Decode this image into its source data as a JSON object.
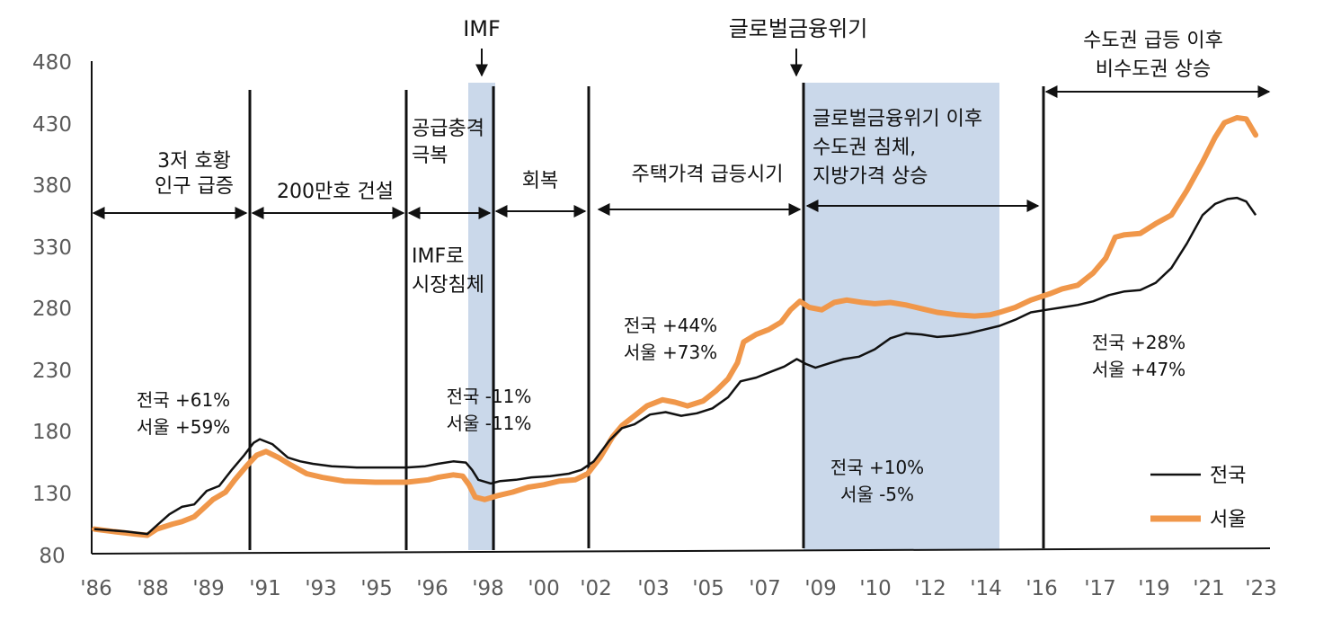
{
  "colors": {
    "nationwide": "#111111",
    "seoul": "#f0974a",
    "shade": "#cad8ea",
    "axis": "#111111"
  },
  "chart_data": {
    "type": "line",
    "title": "",
    "xlabel": "",
    "ylabel": "",
    "ylim": [
      80,
      480
    ],
    "yticks": [
      80,
      130,
      180,
      230,
      280,
      330,
      380,
      430,
      480
    ],
    "x_tick_labels": [
      "'86",
      "'88",
      "'89",
      "'91",
      "'93",
      "'95",
      "'96",
      "'98",
      "'00",
      "'02",
      "'03",
      "'05",
      "'07",
      "'09",
      "'10",
      "'12",
      "'14",
      "'16",
      "'17",
      "'19",
      "'21",
      "'23"
    ],
    "x_range": [
      1986.0,
      2023.4
    ],
    "shaded_periods": [
      {
        "name": "imf",
        "start": 1997.9,
        "end": 1998.6
      },
      {
        "name": "gfc",
        "start": 2008.8,
        "end": 2014.9
      }
    ],
    "period_dividers": [
      1991.0,
      1996.0,
      1998.5,
      2002.4,
      2008.8,
      2016.2
    ],
    "events": [
      {
        "label": "IMF",
        "x": 1998.1
      },
      {
        "label": "글로벌금융위기",
        "x": 2008.3
      }
    ],
    "period_labels": [
      {
        "lines": [
          "3저 호황",
          "인구 급증"
        ]
      },
      {
        "lines": [
          "200만호 건설"
        ]
      },
      {
        "lines": [
          "공급충격",
          "극복"
        ]
      },
      {
        "lines": [
          "회복"
        ]
      },
      {
        "lines": [
          "주택가격 급등시기"
        ]
      },
      {
        "lines": [
          "글로벌금융위기 이후",
          "수도권 침체,",
          "지방가격 상승"
        ]
      },
      {
        "lines": [
          "수도권 급등 이후",
          "비수도권 상승"
        ]
      },
      {
        "lines": [
          "IMF로",
          "시장침체"
        ]
      }
    ],
    "period_stats": [
      {
        "nationwide": "전국 +61%",
        "seoul": "서울 +59%"
      },
      {
        "nationwide": "전국 -11%",
        "seoul": "서울 -11%"
      },
      {
        "nationwide": "전국 +44%",
        "seoul": "서울 +73%"
      },
      {
        "nationwide": "전국 +10%",
        "seoul": "서울 -5%"
      },
      {
        "nationwide": "전국 +28%",
        "seoul": "서울 +47%"
      }
    ],
    "series": [
      {
        "name": "전국",
        "color": "#111111",
        "points": [
          [
            1986.0,
            100
          ],
          [
            1987.0,
            98
          ],
          [
            1987.7,
            96
          ],
          [
            1988.0,
            103
          ],
          [
            1988.4,
            112
          ],
          [
            1988.8,
            118
          ],
          [
            1989.2,
            120
          ],
          [
            1989.6,
            131
          ],
          [
            1990.0,
            135
          ],
          [
            1990.4,
            148
          ],
          [
            1990.8,
            160
          ],
          [
            1991.1,
            170
          ],
          [
            1991.3,
            173
          ],
          [
            1991.7,
            169
          ],
          [
            1992.2,
            158
          ],
          [
            1992.6,
            155
          ],
          [
            1993.0,
            153
          ],
          [
            1993.6,
            151
          ],
          [
            1994.4,
            150
          ],
          [
            1995.2,
            150
          ],
          [
            1996.0,
            150
          ],
          [
            1996.6,
            151
          ],
          [
            1997.0,
            153
          ],
          [
            1997.5,
            155
          ],
          [
            1997.9,
            154
          ],
          [
            1998.1,
            148
          ],
          [
            1998.3,
            140
          ],
          [
            1998.7,
            137
          ],
          [
            1999.0,
            139
          ],
          [
            1999.5,
            140
          ],
          [
            2000.0,
            142
          ],
          [
            2000.6,
            143
          ],
          [
            2001.2,
            145
          ],
          [
            2001.6,
            148
          ],
          [
            2002.0,
            155
          ],
          [
            2002.5,
            172
          ],
          [
            2002.9,
            182
          ],
          [
            2003.3,
            185
          ],
          [
            2003.8,
            193
          ],
          [
            2004.3,
            195
          ],
          [
            2004.8,
            192
          ],
          [
            2005.3,
            194
          ],
          [
            2005.8,
            198
          ],
          [
            2006.3,
            207
          ],
          [
            2006.7,
            220
          ],
          [
            2007.2,
            223
          ],
          [
            2007.7,
            228
          ],
          [
            2008.1,
            232
          ],
          [
            2008.5,
            238
          ],
          [
            2008.8,
            234
          ],
          [
            2009.1,
            231
          ],
          [
            2009.6,
            235
          ],
          [
            2010.0,
            238
          ],
          [
            2010.5,
            240
          ],
          [
            2011.0,
            246
          ],
          [
            2011.5,
            255
          ],
          [
            2012.0,
            259
          ],
          [
            2012.5,
            258
          ],
          [
            2013.0,
            256
          ],
          [
            2013.5,
            257
          ],
          [
            2014.0,
            259
          ],
          [
            2014.5,
            262
          ],
          [
            2015.0,
            265
          ],
          [
            2015.5,
            270
          ],
          [
            2016.0,
            276
          ],
          [
            2016.5,
            278
          ],
          [
            2017.0,
            280
          ],
          [
            2017.5,
            282
          ],
          [
            2018.0,
            285
          ],
          [
            2018.5,
            290
          ],
          [
            2019.0,
            293
          ],
          [
            2019.5,
            294
          ],
          [
            2020.0,
            300
          ],
          [
            2020.5,
            312
          ],
          [
            2021.0,
            332
          ],
          [
            2021.5,
            355
          ],
          [
            2021.9,
            364
          ],
          [
            2022.3,
            368
          ],
          [
            2022.6,
            369
          ],
          [
            2022.9,
            366
          ],
          [
            2023.2,
            355
          ]
        ]
      },
      {
        "name": "서울",
        "color": "#f0974a",
        "points": [
          [
            1986.0,
            100
          ],
          [
            1986.6,
            98
          ],
          [
            1987.3,
            96
          ],
          [
            1987.7,
            95
          ],
          [
            1988.0,
            100
          ],
          [
            1988.5,
            104
          ],
          [
            1988.8,
            106
          ],
          [
            1989.2,
            110
          ],
          [
            1989.5,
            117
          ],
          [
            1989.8,
            124
          ],
          [
            1990.2,
            130
          ],
          [
            1990.5,
            140
          ],
          [
            1990.9,
            152
          ],
          [
            1991.2,
            160
          ],
          [
            1991.5,
            163
          ],
          [
            1991.9,
            158
          ],
          [
            1992.3,
            152
          ],
          [
            1992.8,
            145
          ],
          [
            1993.3,
            142
          ],
          [
            1994.0,
            139
          ],
          [
            1995.0,
            138
          ],
          [
            1996.0,
            138
          ],
          [
            1996.7,
            140
          ],
          [
            1997.0,
            142
          ],
          [
            1997.5,
            144
          ],
          [
            1997.8,
            143
          ],
          [
            1998.0,
            136
          ],
          [
            1998.2,
            126
          ],
          [
            1998.5,
            124
          ],
          [
            1998.9,
            127
          ],
          [
            1999.4,
            130
          ],
          [
            1999.9,
            134
          ],
          [
            2000.4,
            136
          ],
          [
            2000.9,
            139
          ],
          [
            2001.4,
            140
          ],
          [
            2001.8,
            145
          ],
          [
            2002.2,
            158
          ],
          [
            2002.6,
            175
          ],
          [
            2002.9,
            184
          ],
          [
            2003.3,
            192
          ],
          [
            2003.7,
            200
          ],
          [
            2004.2,
            205
          ],
          [
            2004.6,
            203
          ],
          [
            2005.0,
            200
          ],
          [
            2005.5,
            204
          ],
          [
            2005.9,
            212
          ],
          [
            2006.3,
            222
          ],
          [
            2006.6,
            235
          ],
          [
            2006.8,
            252
          ],
          [
            2007.2,
            258
          ],
          [
            2007.6,
            262
          ],
          [
            2008.0,
            268
          ],
          [
            2008.3,
            278
          ],
          [
            2008.6,
            285
          ],
          [
            2008.9,
            280
          ],
          [
            2009.3,
            278
          ],
          [
            2009.7,
            284
          ],
          [
            2010.1,
            286
          ],
          [
            2010.6,
            284
          ],
          [
            2011.0,
            283
          ],
          [
            2011.5,
            284
          ],
          [
            2012.0,
            282
          ],
          [
            2012.5,
            279
          ],
          [
            2013.0,
            276
          ],
          [
            2013.6,
            274
          ],
          [
            2014.2,
            273
          ],
          [
            2014.7,
            274
          ],
          [
            2015.0,
            276
          ],
          [
            2015.5,
            280
          ],
          [
            2016.0,
            286
          ],
          [
            2016.6,
            291
          ],
          [
            2017.0,
            295
          ],
          [
            2017.5,
            298
          ],
          [
            2018.0,
            308
          ],
          [
            2018.4,
            320
          ],
          [
            2018.7,
            337
          ],
          [
            2019.0,
            339
          ],
          [
            2019.5,
            340
          ],
          [
            2020.0,
            348
          ],
          [
            2020.5,
            355
          ],
          [
            2021.0,
            375
          ],
          [
            2021.5,
            398
          ],
          [
            2021.9,
            418
          ],
          [
            2022.2,
            430
          ],
          [
            2022.6,
            434
          ],
          [
            2022.9,
            433
          ],
          [
            2023.2,
            420
          ]
        ]
      }
    ],
    "legend": [
      "전국",
      "서울"
    ],
    "legend_position": "bottom-right"
  }
}
